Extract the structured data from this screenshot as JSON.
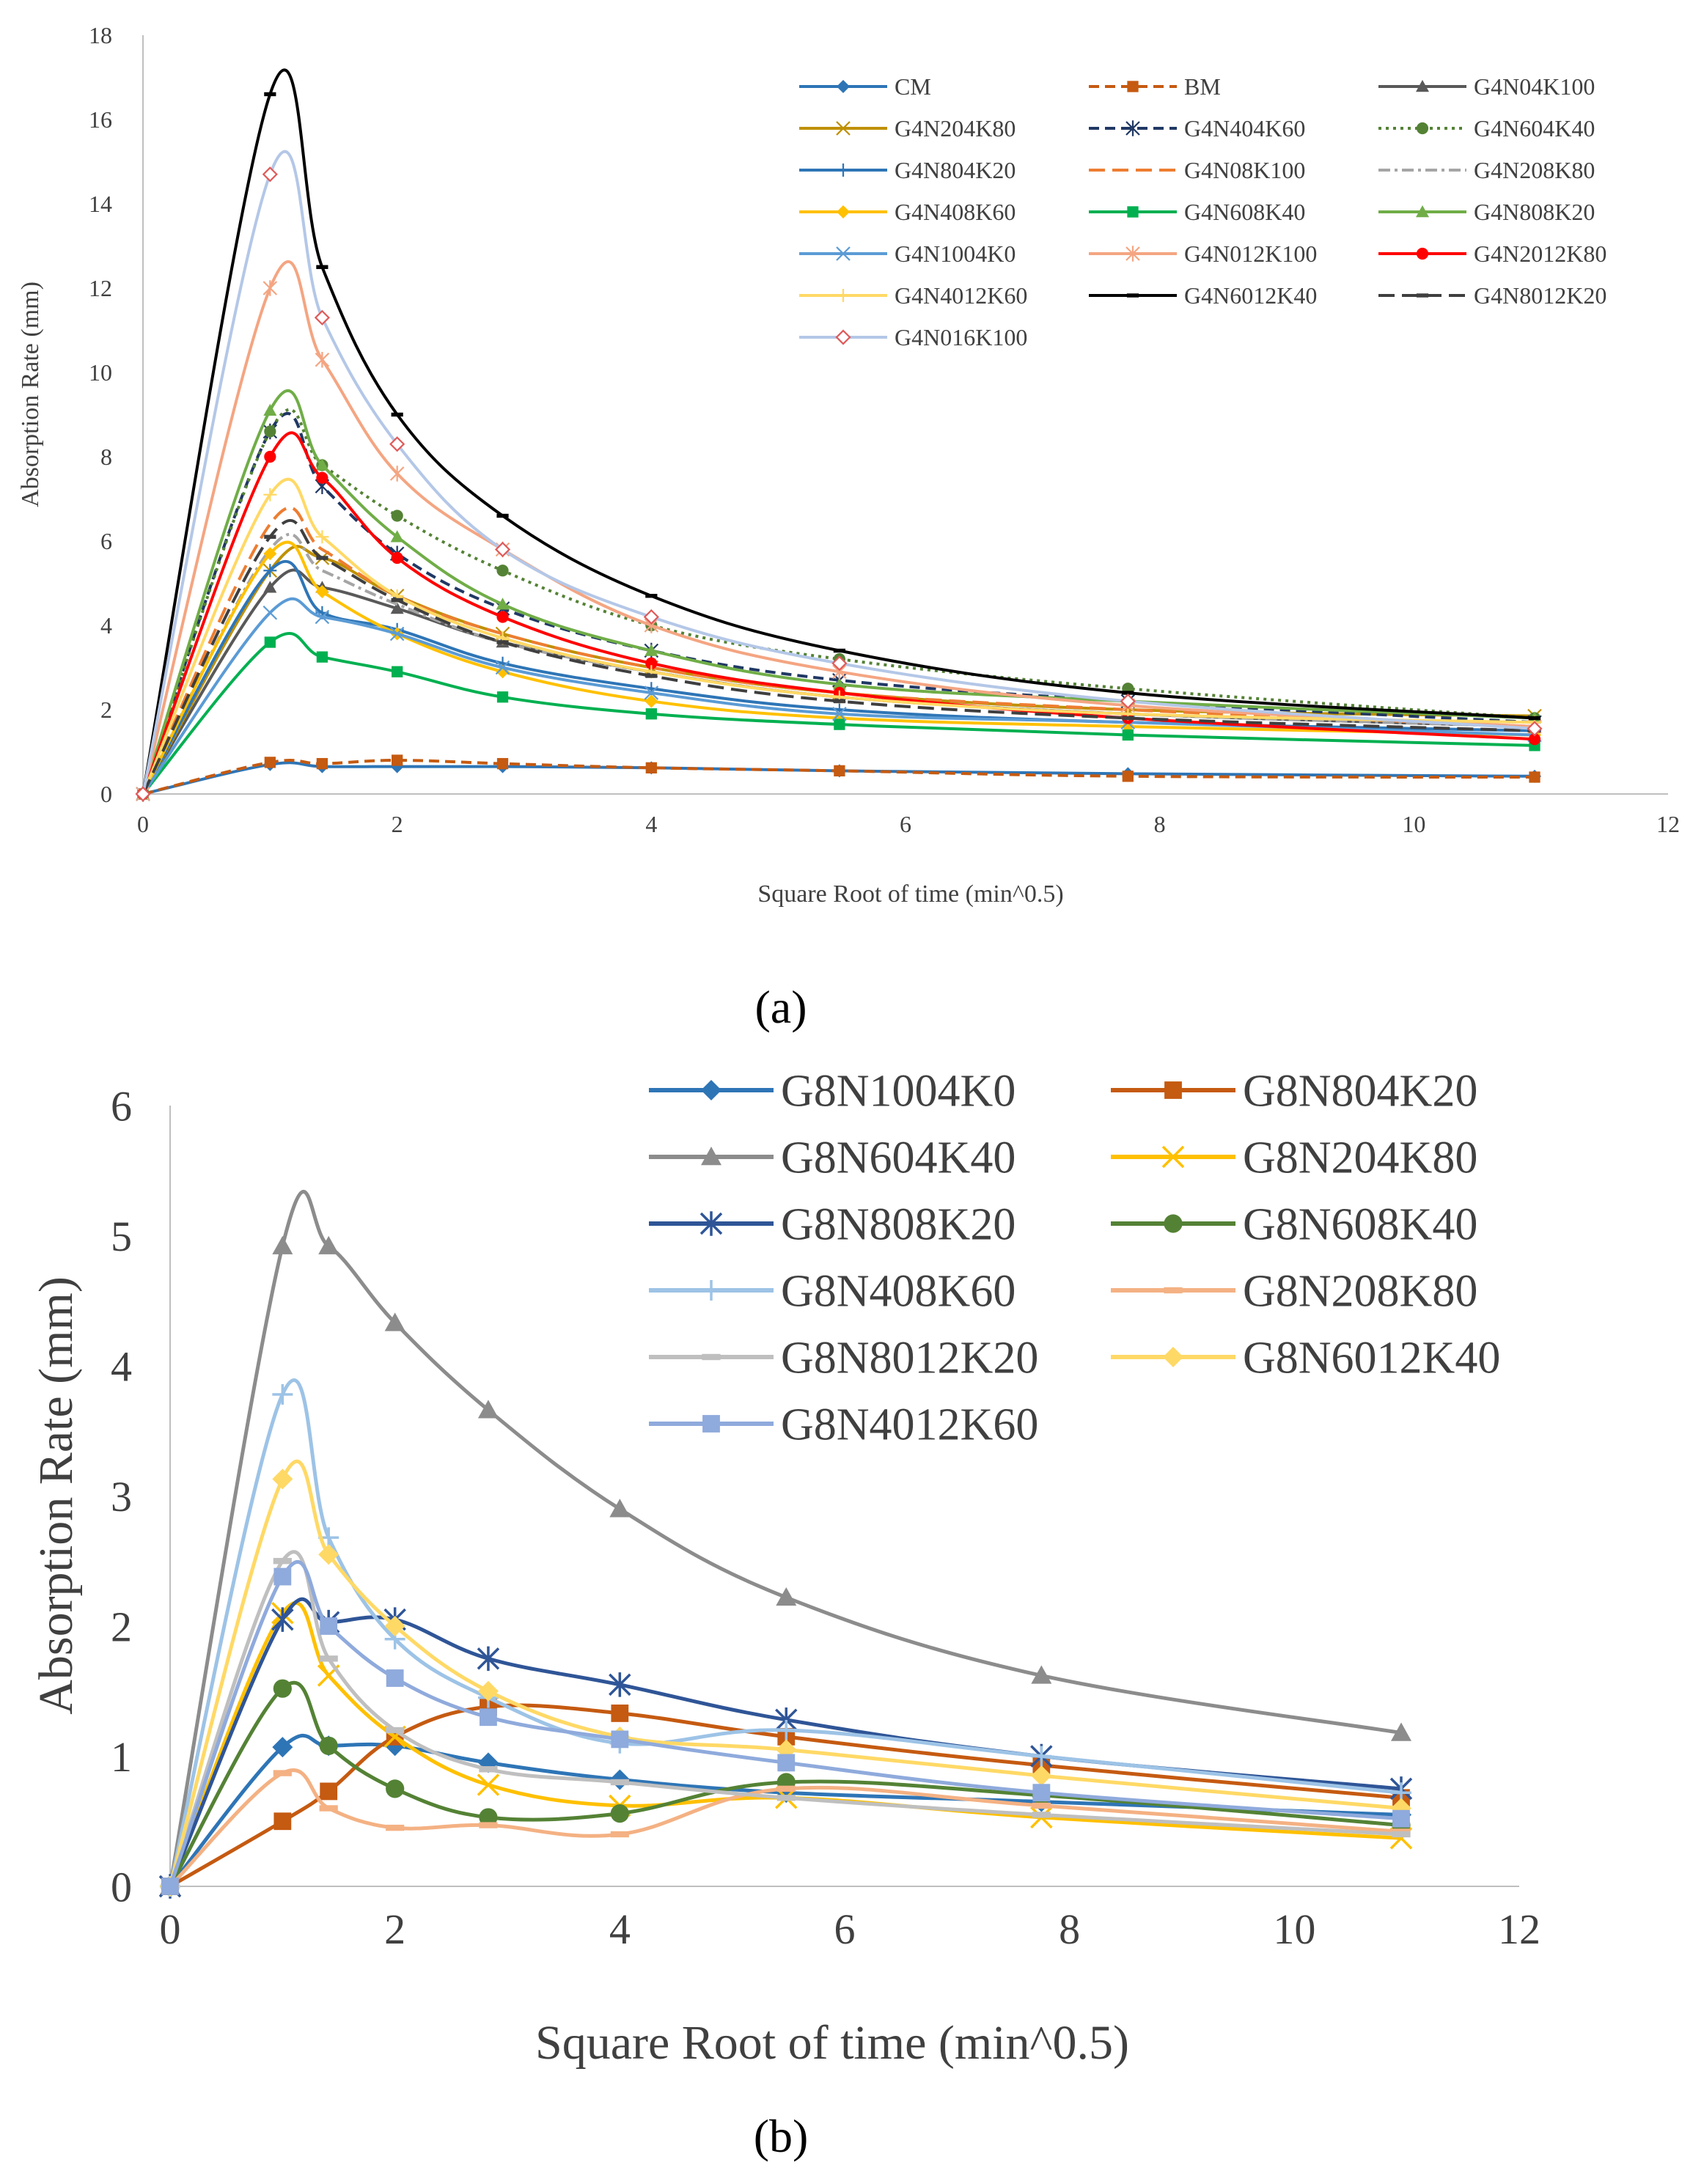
{
  "chart_data": [
    {
      "type": "line",
      "panel_label": "(a)",
      "xlabel": "Square Root of time (min^0.5)",
      "ylabel": "Absorption Rate (mm)",
      "xlim": [
        0,
        12
      ],
      "ylim": [
        0,
        18
      ],
      "x_ticks": [
        "0",
        "2",
        "4",
        "6",
        "8",
        "10",
        "12"
      ],
      "y_ticks": [
        "0",
        "2",
        "4",
        "6",
        "8",
        "10",
        "12",
        "14",
        "16",
        "18"
      ],
      "grid": false,
      "legend_position": "top-right, 3 columns",
      "x": [
        0,
        1,
        1.41,
        2,
        2.83,
        4,
        5.48,
        7.75,
        10.95
      ],
      "series": [
        {
          "name": "CM",
          "color": "#2e75b6",
          "dash": "solid",
          "marker": "diamond",
          "values": [
            0,
            0.7,
            0.65,
            0.65,
            0.65,
            0.62,
            0.55,
            0.48,
            0.42
          ]
        },
        {
          "name": "BM",
          "color": "#c55a11",
          "dash": "dash",
          "marker": "square",
          "values": [
            0,
            0.75,
            0.72,
            0.8,
            0.72,
            0.62,
            0.55,
            0.42,
            0.4
          ]
        },
        {
          "name": "G4N04K100",
          "color": "#595959",
          "dash": "solid",
          "marker": "triangle",
          "values": [
            0,
            4.9,
            4.9,
            4.4,
            3.6,
            2.9,
            2.3,
            1.9,
            1.6
          ]
        },
        {
          "name": "G4N204K80",
          "color": "#bf9000",
          "dash": "solid",
          "marker": "x",
          "values": [
            0,
            5.3,
            5.6,
            4.7,
            3.8,
            3.0,
            2.4,
            2.0,
            1.85
          ]
        },
        {
          "name": "G4N404K60",
          "color": "#203864",
          "dash": "dash",
          "marker": "star",
          "values": [
            0,
            8.6,
            7.3,
            5.7,
            4.4,
            3.4,
            2.7,
            2.2,
            1.7
          ]
        },
        {
          "name": "G4N604K40",
          "color": "#548235",
          "dash": "dot",
          "marker": "circle",
          "values": [
            0,
            8.6,
            7.8,
            6.6,
            5.3,
            4.0,
            3.2,
            2.5,
            1.8
          ]
        },
        {
          "name": "G4N804K20",
          "color": "#2e75b6",
          "dash": "solid",
          "marker": "plus",
          "values": [
            0,
            5.3,
            4.3,
            3.9,
            3.1,
            2.5,
            2.0,
            1.7,
            1.5
          ]
        },
        {
          "name": "G4N08K100",
          "color": "#ed7d31",
          "dash": "longdash",
          "marker": "none",
          "values": [
            0,
            6.4,
            5.8,
            4.7,
            3.8,
            3.0,
            2.4,
            2.0,
            1.6
          ]
        },
        {
          "name": "G4N208K80",
          "color": "#a5a5a5",
          "dash": "dashdot",
          "marker": "none",
          "values": [
            0,
            5.8,
            5.3,
            4.5,
            3.6,
            2.9,
            2.3,
            1.9,
            1.6
          ]
        },
        {
          "name": "G4N408K60",
          "color": "#ffc000",
          "dash": "solid",
          "marker": "diamond",
          "values": [
            0,
            5.7,
            4.8,
            3.8,
            2.9,
            2.2,
            1.8,
            1.6,
            1.4
          ]
        },
        {
          "name": "G4N608K40",
          "color": "#00b050",
          "dash": "solid",
          "marker": "square",
          "values": [
            0,
            3.6,
            3.25,
            2.9,
            2.3,
            1.9,
            1.65,
            1.4,
            1.15
          ]
        },
        {
          "name": "G4N808K20",
          "color": "#70ad47",
          "dash": "solid",
          "marker": "triangle",
          "values": [
            0,
            9.1,
            7.8,
            6.1,
            4.5,
            3.4,
            2.6,
            2.2,
            1.8
          ]
        },
        {
          "name": "G4N1004K0",
          "color": "#5b9bd5",
          "dash": "solid",
          "marker": "x",
          "values": [
            0,
            4.3,
            4.2,
            3.8,
            3.0,
            2.4,
            1.9,
            1.7,
            1.4
          ]
        },
        {
          "name": "G4N012K100",
          "color": "#f4a582",
          "dash": "solid",
          "marker": "star",
          "values": [
            0,
            12.0,
            10.3,
            7.6,
            5.8,
            4.0,
            2.9,
            2.1,
            1.6
          ]
        },
        {
          "name": "G4N2012K80",
          "color": "#ff0000",
          "dash": "solid",
          "marker": "circle",
          "values": [
            0,
            8.0,
            7.5,
            5.6,
            4.2,
            3.1,
            2.4,
            1.8,
            1.3
          ]
        },
        {
          "name": "G4N4012K60",
          "color": "#ffd966",
          "dash": "solid",
          "marker": "plus",
          "values": [
            0,
            7.1,
            6.1,
            4.7,
            3.7,
            2.9,
            2.3,
            1.9,
            1.7
          ]
        },
        {
          "name": "G4N6012K40",
          "color": "#000000",
          "dash": "solid",
          "marker": "dash",
          "values": [
            0,
            16.6,
            12.5,
            9.0,
            6.6,
            4.7,
            3.4,
            2.4,
            1.8
          ]
        },
        {
          "name": "G4N8012K20",
          "color": "#3f3f3f",
          "dash": "longdash",
          "marker": "dash",
          "values": [
            0,
            6.1,
            5.6,
            4.6,
            3.6,
            2.8,
            2.2,
            1.8,
            1.5
          ]
        },
        {
          "name": "G4N016K100",
          "color": "#b4c7e7",
          "dash": "solid",
          "marker": "diamond-open",
          "values": [
            0,
            14.7,
            11.3,
            8.3,
            5.8,
            4.2,
            3.1,
            2.2,
            1.55
          ]
        }
      ]
    },
    {
      "type": "line",
      "panel_label": "(b)",
      "xlabel": "Square Root of time (min^0.5)",
      "ylabel": "Absorption Rate (mm)",
      "xlim": [
        0,
        12
      ],
      "ylim": [
        0,
        6
      ],
      "x_ticks": [
        "0",
        "2",
        "4",
        "6",
        "8",
        "10",
        "12"
      ],
      "y_ticks": [
        "0",
        "1",
        "2",
        "3",
        "4",
        "5",
        "6"
      ],
      "grid": false,
      "legend_position": "top-right, 2 columns",
      "x": [
        0,
        1,
        1.41,
        2,
        2.83,
        4,
        5.48,
        7.75,
        10.95
      ],
      "series": [
        {
          "name": "G8N1004K0",
          "color": "#2e75b6",
          "marker": "diamond",
          "values": [
            0,
            1.07,
            1.08,
            1.08,
            0.95,
            0.82,
            0.72,
            0.65,
            0.55
          ]
        },
        {
          "name": "G8N804K20",
          "color": "#c55a11",
          "marker": "square",
          "values": [
            0,
            0.5,
            0.73,
            1.15,
            1.38,
            1.33,
            1.15,
            0.93,
            0.68
          ]
        },
        {
          "name": "G8N604K40",
          "color": "#8c8c8c",
          "marker": "triangle",
          "values": [
            0,
            4.92,
            4.92,
            4.33,
            3.66,
            2.9,
            2.22,
            1.62,
            1.18
          ]
        },
        {
          "name": "G8N204K80",
          "color": "#ffc000",
          "marker": "x",
          "values": [
            0,
            2.1,
            1.62,
            1.15,
            0.78,
            0.62,
            0.68,
            0.53,
            0.37
          ]
        },
        {
          "name": "G8N808K20",
          "color": "#2f5597",
          "marker": "star",
          "values": [
            0,
            2.05,
            2.03,
            2.05,
            1.75,
            1.55,
            1.28,
            1.0,
            0.75
          ]
        },
        {
          "name": "G8N608K40",
          "color": "#548235",
          "marker": "circle",
          "values": [
            0,
            1.52,
            1.08,
            0.75,
            0.53,
            0.56,
            0.8,
            0.7,
            0.47
          ]
        },
        {
          "name": "G8N408K60",
          "color": "#9dc3e6",
          "marker": "plus",
          "values": [
            0,
            3.78,
            2.68,
            1.9,
            1.45,
            1.1,
            1.2,
            1.0,
            0.72
          ]
        },
        {
          "name": "G8N208K80",
          "color": "#f4b183",
          "marker": "dash",
          "values": [
            0,
            0.87,
            0.6,
            0.45,
            0.47,
            0.4,
            0.75,
            0.62,
            0.42
          ]
        },
        {
          "name": "G8N8012K20",
          "color": "#bfbfbf",
          "marker": "dash",
          "values": [
            0,
            2.5,
            1.75,
            1.2,
            0.9,
            0.8,
            0.68,
            0.55,
            0.4
          ]
        },
        {
          "name": "G8N6012K40",
          "color": "#ffd966",
          "marker": "diamond",
          "values": [
            0,
            3.13,
            2.55,
            2.0,
            1.5,
            1.15,
            1.05,
            0.85,
            0.6
          ]
        },
        {
          "name": "G8N4012K60",
          "color": "#8faadc",
          "marker": "square",
          "values": [
            0,
            2.38,
            2.0,
            1.6,
            1.3,
            1.13,
            0.95,
            0.72,
            0.52
          ]
        }
      ]
    }
  ]
}
